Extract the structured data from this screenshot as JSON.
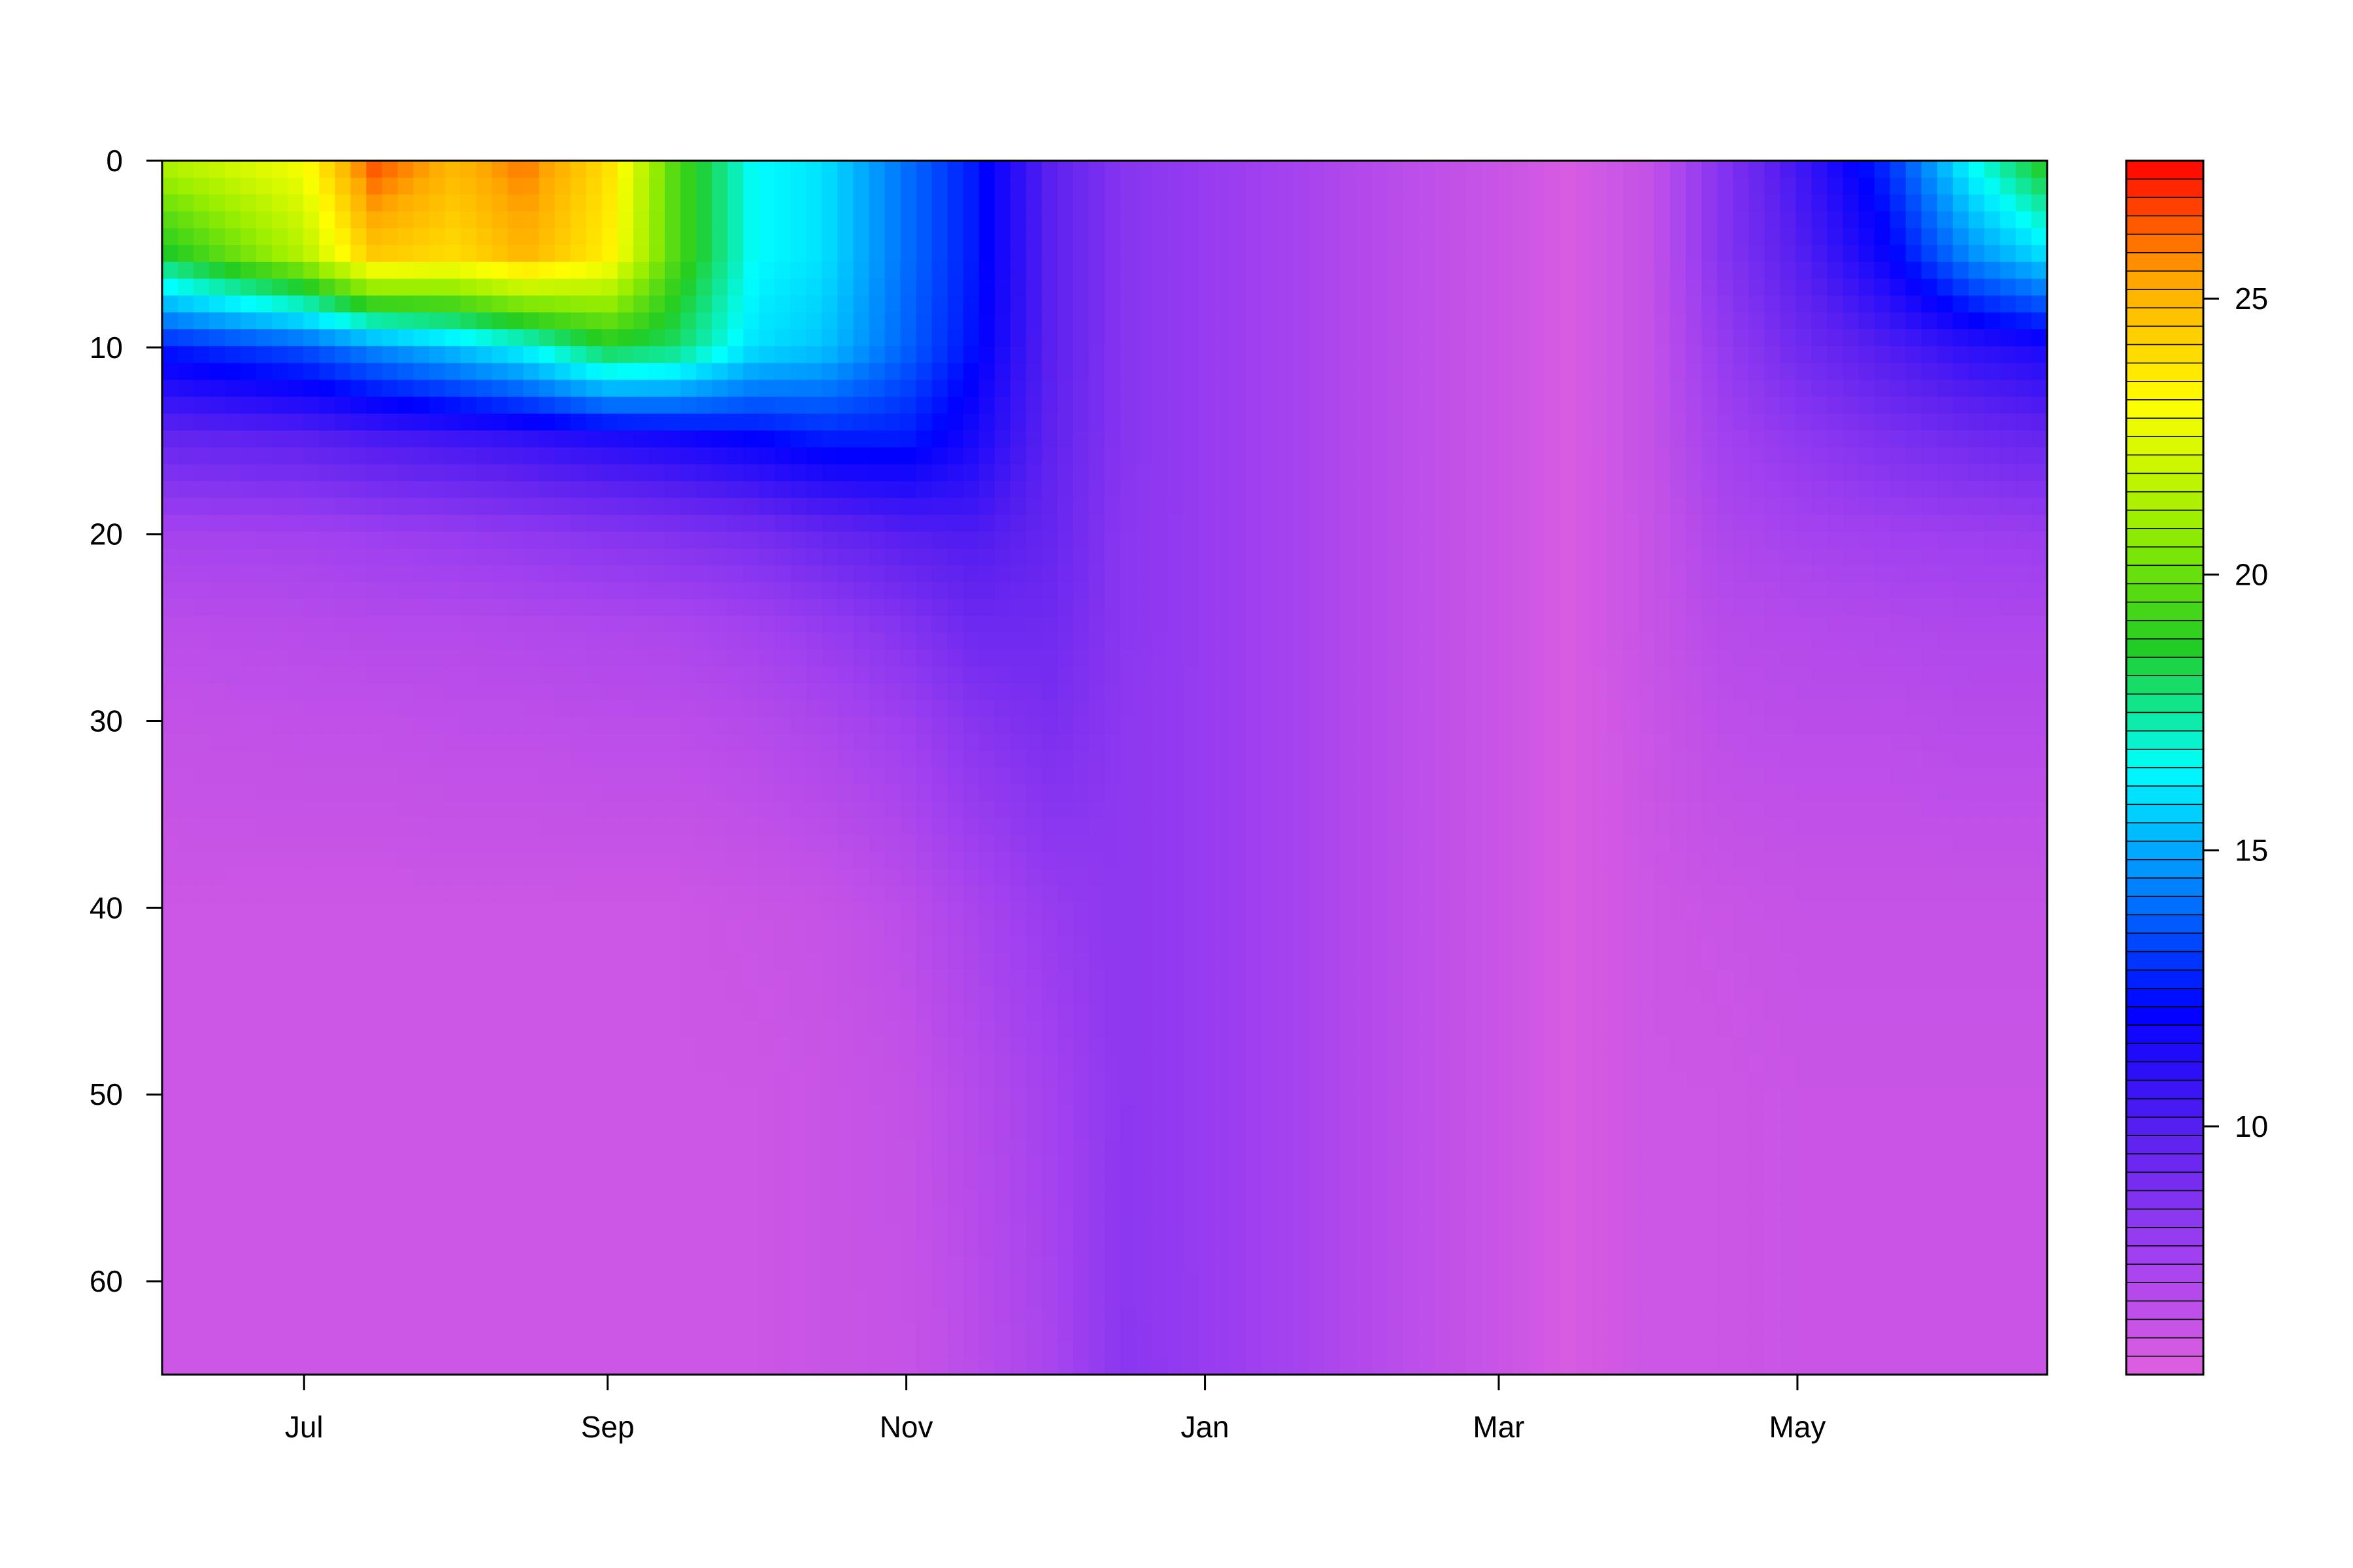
{
  "chart_data": {
    "type": "heatmap",
    "title": "",
    "xlabel": "",
    "ylabel": "",
    "x_ticks": [
      "Jul",
      "Sep",
      "Nov",
      "Jan",
      "Mar",
      "May"
    ],
    "x_tick_dates": [
      "2019-07-01",
      "2019-09-01",
      "2019-11-01",
      "2020-01-01",
      "2020-03-01",
      "2020-05-01"
    ],
    "xlim": [
      "2019-06-02",
      "2020-06-21"
    ],
    "y_ticks": [
      0,
      10,
      20,
      30,
      40,
      50,
      60
    ],
    "ylim": [
      0,
      65
    ],
    "y_reversed": true,
    "colorbar": {
      "ticks": [
        10,
        15,
        20,
        25
      ],
      "range": [
        5.5,
        27.5
      ],
      "colors": [
        "#e060e0",
        "#a040f0",
        "#5a20f0",
        "#0000ff",
        "#0080ff",
        "#00ffff",
        "#22cc22",
        "#99ee00",
        "#ffff00",
        "#ffaa00",
        "#ff0000"
      ]
    },
    "grid": false,
    "legend_position": "right",
    "depths": [
      0,
      5,
      10,
      15,
      20,
      25,
      30,
      40,
      50,
      65
    ],
    "series": [
      {
        "date": "2019-06-02",
        "values": [
          21.5,
          18.5,
          12.5,
          9.5,
          7.5,
          6.8,
          6.5,
          6.2,
          6.2,
          6.2
        ]
      },
      {
        "date": "2019-07-01",
        "values": [
          23.0,
          21.5,
          13.5,
          9.8,
          7.6,
          6.9,
          6.6,
          6.2,
          6.2,
          6.2
        ]
      },
      {
        "date": "2019-07-15",
        "values": [
          26.5,
          24.5,
          14.5,
          10.2,
          7.8,
          7.0,
          6.6,
          6.2,
          6.2,
          6.2
        ]
      },
      {
        "date": "2019-08-01",
        "values": [
          25.0,
          24.0,
          15.5,
          10.5,
          8.0,
          7.0,
          6.7,
          6.2,
          6.2,
          6.2
        ]
      },
      {
        "date": "2019-08-15",
        "values": [
          26.0,
          25.0,
          16.5,
          10.8,
          8.2,
          7.1,
          6.7,
          6.2,
          6.2,
          6.2
        ]
      },
      {
        "date": "2019-09-01",
        "values": [
          24.0,
          23.5,
          18.5,
          11.2,
          8.5,
          7.2,
          6.8,
          6.2,
          6.2,
          6.2
        ]
      },
      {
        "date": "2019-09-15",
        "values": [
          19.5,
          19.5,
          18.0,
          11.5,
          8.7,
          7.3,
          6.8,
          6.2,
          6.2,
          6.2
        ]
      },
      {
        "date": "2019-10-01",
        "values": [
          16.5,
          16.5,
          16.0,
          12.0,
          9.0,
          7.6,
          7.0,
          6.3,
          6.2,
          6.2
        ]
      },
      {
        "date": "2019-10-15",
        "values": [
          16.0,
          16.0,
          15.5,
          12.5,
          9.5,
          8.0,
          7.3,
          6.4,
          6.3,
          6.3
        ]
      },
      {
        "date": "2019-11-01",
        "values": [
          14.0,
          14.0,
          13.8,
          12.5,
          10.0,
          8.6,
          7.8,
          6.8,
          6.5,
          6.4
        ]
      },
      {
        "date": "2019-11-15",
        "values": [
          12.5,
          12.5,
          12.3,
          11.5,
          10.2,
          9.3,
          8.5,
          7.4,
          7.0,
          6.8
        ]
      },
      {
        "date": "2019-12-01",
        "values": [
          9.8,
          9.8,
          9.8,
          9.7,
          9.5,
          9.2,
          8.9,
          8.0,
          7.6,
          7.4
        ]
      },
      {
        "date": "2019-12-15",
        "values": [
          8.5,
          8.5,
          8.5,
          8.5,
          8.4,
          8.4,
          8.3,
          8.3,
          8.3,
          8.4
        ]
      },
      {
        "date": "2020-01-01",
        "values": [
          8.0,
          8.0,
          8.0,
          8.0,
          8.0,
          8.0,
          8.0,
          8.0,
          8.0,
          8.0
        ]
      },
      {
        "date": "2020-01-20",
        "values": [
          7.5,
          7.5,
          7.5,
          7.5,
          7.5,
          7.5,
          7.5,
          7.5,
          7.5,
          7.5
        ]
      },
      {
        "date": "2020-02-10",
        "values": [
          6.8,
          6.8,
          6.8,
          6.8,
          6.8,
          6.8,
          6.8,
          6.8,
          6.8,
          6.8
        ]
      },
      {
        "date": "2020-03-01",
        "values": [
          6.3,
          6.3,
          6.3,
          6.3,
          6.3,
          6.3,
          6.3,
          6.3,
          6.3,
          6.3
        ]
      },
      {
        "date": "2020-03-15",
        "values": [
          5.8,
          5.8,
          5.8,
          5.8,
          5.8,
          5.8,
          5.8,
          5.8,
          5.8,
          5.8
        ]
      },
      {
        "date": "2020-04-01",
        "values": [
          6.5,
          6.5,
          6.5,
          6.5,
          6.4,
          6.4,
          6.3,
          6.2,
          6.2,
          6.2
        ]
      },
      {
        "date": "2020-04-15",
        "values": [
          8.5,
          8.5,
          8.0,
          7.6,
          7.2,
          6.9,
          6.7,
          6.3,
          6.2,
          6.2
        ]
      },
      {
        "date": "2020-05-01",
        "values": [
          10.5,
          10.0,
          9.2,
          8.2,
          7.5,
          7.0,
          6.8,
          6.4,
          6.3,
          6.3
        ]
      },
      {
        "date": "2020-05-20",
        "values": [
          13.0,
          12.0,
          10.2,
          8.8,
          7.7,
          7.1,
          6.8,
          6.4,
          6.3,
          6.3
        ]
      },
      {
        "date": "2020-06-05",
        "values": [
          16.5,
          14.5,
          11.0,
          9.2,
          7.8,
          7.2,
          6.9,
          6.4,
          6.3,
          6.3
        ]
      },
      {
        "date": "2020-06-21",
        "values": [
          19.0,
          16.0,
          11.5,
          9.5,
          7.9,
          7.2,
          6.9,
          6.4,
          6.3,
          6.3
        ]
      }
    ]
  }
}
